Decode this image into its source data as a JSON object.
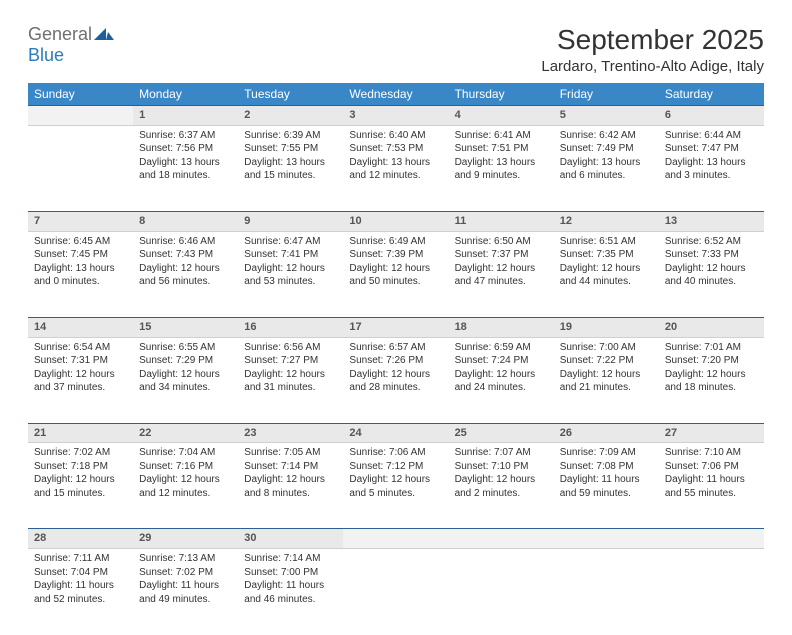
{
  "logo": {
    "word1": "General",
    "word2": "Blue",
    "mark_color": "#1f5f9e"
  },
  "title": "September 2025",
  "location": "Lardaro, Trentino-Alto Adige, Italy",
  "colors": {
    "header_bg": "#3a87c8",
    "header_text": "#ffffff",
    "daynum_bg": "#e9e9e9",
    "daynum_border_top": "#2d5f8f",
    "body_text": "#333333"
  },
  "days_of_week": [
    "Sunday",
    "Monday",
    "Tuesday",
    "Wednesday",
    "Thursday",
    "Friday",
    "Saturday"
  ],
  "weeks": [
    [
      null,
      {
        "n": "1",
        "sunrise": "6:37 AM",
        "sunset": "7:56 PM",
        "daylight": "13 hours and 18 minutes."
      },
      {
        "n": "2",
        "sunrise": "6:39 AM",
        "sunset": "7:55 PM",
        "daylight": "13 hours and 15 minutes."
      },
      {
        "n": "3",
        "sunrise": "6:40 AM",
        "sunset": "7:53 PM",
        "daylight": "13 hours and 12 minutes."
      },
      {
        "n": "4",
        "sunrise": "6:41 AM",
        "sunset": "7:51 PM",
        "daylight": "13 hours and 9 minutes."
      },
      {
        "n": "5",
        "sunrise": "6:42 AM",
        "sunset": "7:49 PM",
        "daylight": "13 hours and 6 minutes."
      },
      {
        "n": "6",
        "sunrise": "6:44 AM",
        "sunset": "7:47 PM",
        "daylight": "13 hours and 3 minutes."
      }
    ],
    [
      {
        "n": "7",
        "sunrise": "6:45 AM",
        "sunset": "7:45 PM",
        "daylight": "13 hours and 0 minutes."
      },
      {
        "n": "8",
        "sunrise": "6:46 AM",
        "sunset": "7:43 PM",
        "daylight": "12 hours and 56 minutes."
      },
      {
        "n": "9",
        "sunrise": "6:47 AM",
        "sunset": "7:41 PM",
        "daylight": "12 hours and 53 minutes."
      },
      {
        "n": "10",
        "sunrise": "6:49 AM",
        "sunset": "7:39 PM",
        "daylight": "12 hours and 50 minutes."
      },
      {
        "n": "11",
        "sunrise": "6:50 AM",
        "sunset": "7:37 PM",
        "daylight": "12 hours and 47 minutes."
      },
      {
        "n": "12",
        "sunrise": "6:51 AM",
        "sunset": "7:35 PM",
        "daylight": "12 hours and 44 minutes."
      },
      {
        "n": "13",
        "sunrise": "6:52 AM",
        "sunset": "7:33 PM",
        "daylight": "12 hours and 40 minutes."
      }
    ],
    [
      {
        "n": "14",
        "sunrise": "6:54 AM",
        "sunset": "7:31 PM",
        "daylight": "12 hours and 37 minutes."
      },
      {
        "n": "15",
        "sunrise": "6:55 AM",
        "sunset": "7:29 PM",
        "daylight": "12 hours and 34 minutes."
      },
      {
        "n": "16",
        "sunrise": "6:56 AM",
        "sunset": "7:27 PM",
        "daylight": "12 hours and 31 minutes."
      },
      {
        "n": "17",
        "sunrise": "6:57 AM",
        "sunset": "7:26 PM",
        "daylight": "12 hours and 28 minutes."
      },
      {
        "n": "18",
        "sunrise": "6:59 AM",
        "sunset": "7:24 PM",
        "daylight": "12 hours and 24 minutes."
      },
      {
        "n": "19",
        "sunrise": "7:00 AM",
        "sunset": "7:22 PM",
        "daylight": "12 hours and 21 minutes."
      },
      {
        "n": "20",
        "sunrise": "7:01 AM",
        "sunset": "7:20 PM",
        "daylight": "12 hours and 18 minutes."
      }
    ],
    [
      {
        "n": "21",
        "sunrise": "7:02 AM",
        "sunset": "7:18 PM",
        "daylight": "12 hours and 15 minutes."
      },
      {
        "n": "22",
        "sunrise": "7:04 AM",
        "sunset": "7:16 PM",
        "daylight": "12 hours and 12 minutes."
      },
      {
        "n": "23",
        "sunrise": "7:05 AM",
        "sunset": "7:14 PM",
        "daylight": "12 hours and 8 minutes."
      },
      {
        "n": "24",
        "sunrise": "7:06 AM",
        "sunset": "7:12 PM",
        "daylight": "12 hours and 5 minutes."
      },
      {
        "n": "25",
        "sunrise": "7:07 AM",
        "sunset": "7:10 PM",
        "daylight": "12 hours and 2 minutes."
      },
      {
        "n": "26",
        "sunrise": "7:09 AM",
        "sunset": "7:08 PM",
        "daylight": "11 hours and 59 minutes."
      },
      {
        "n": "27",
        "sunrise": "7:10 AM",
        "sunset": "7:06 PM",
        "daylight": "11 hours and 55 minutes."
      }
    ],
    [
      {
        "n": "28",
        "sunrise": "7:11 AM",
        "sunset": "7:04 PM",
        "daylight": "11 hours and 52 minutes."
      },
      {
        "n": "29",
        "sunrise": "7:13 AM",
        "sunset": "7:02 PM",
        "daylight": "11 hours and 49 minutes."
      },
      {
        "n": "30",
        "sunrise": "7:14 AM",
        "sunset": "7:00 PM",
        "daylight": "11 hours and 46 minutes."
      },
      null,
      null,
      null,
      null
    ]
  ],
  "labels": {
    "sunrise": "Sunrise:",
    "sunset": "Sunset:",
    "daylight": "Daylight:"
  }
}
